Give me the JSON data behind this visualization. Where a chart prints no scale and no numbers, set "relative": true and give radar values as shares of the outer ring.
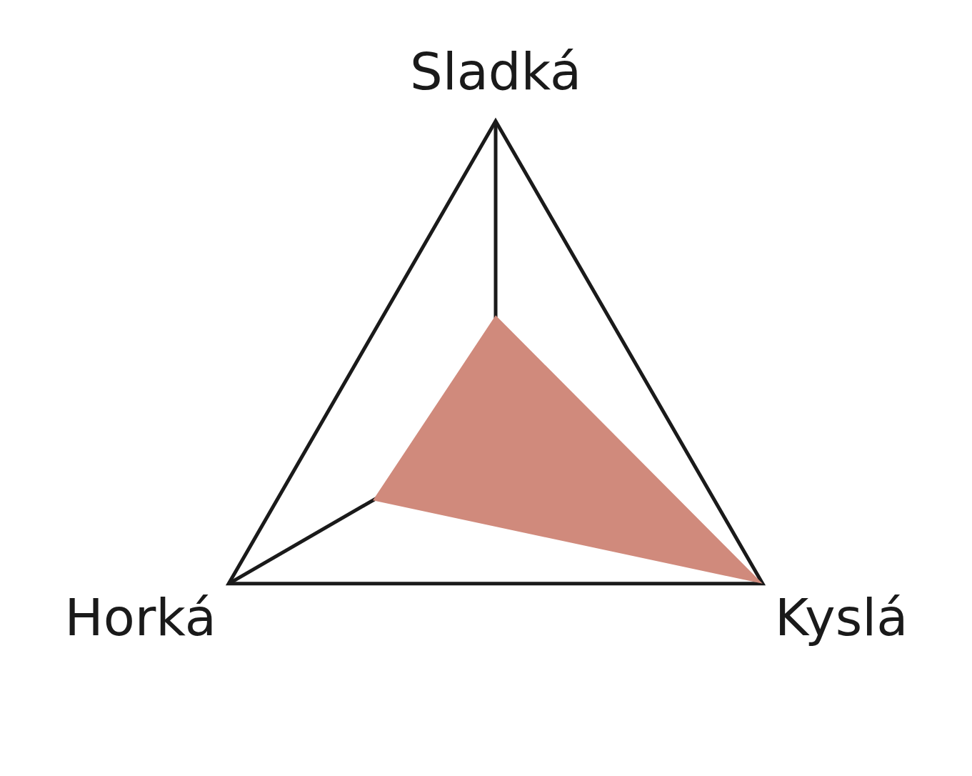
{
  "chart_data": {
    "type": "radar",
    "relative": true,
    "categories": [
      "Sladká",
      "Kyslá",
      "Horká"
    ],
    "series": [
      {
        "color": "#d08a7c",
        "values": [
          0.37,
          1,
          0.46
        ]
      }
    ]
  }
}
